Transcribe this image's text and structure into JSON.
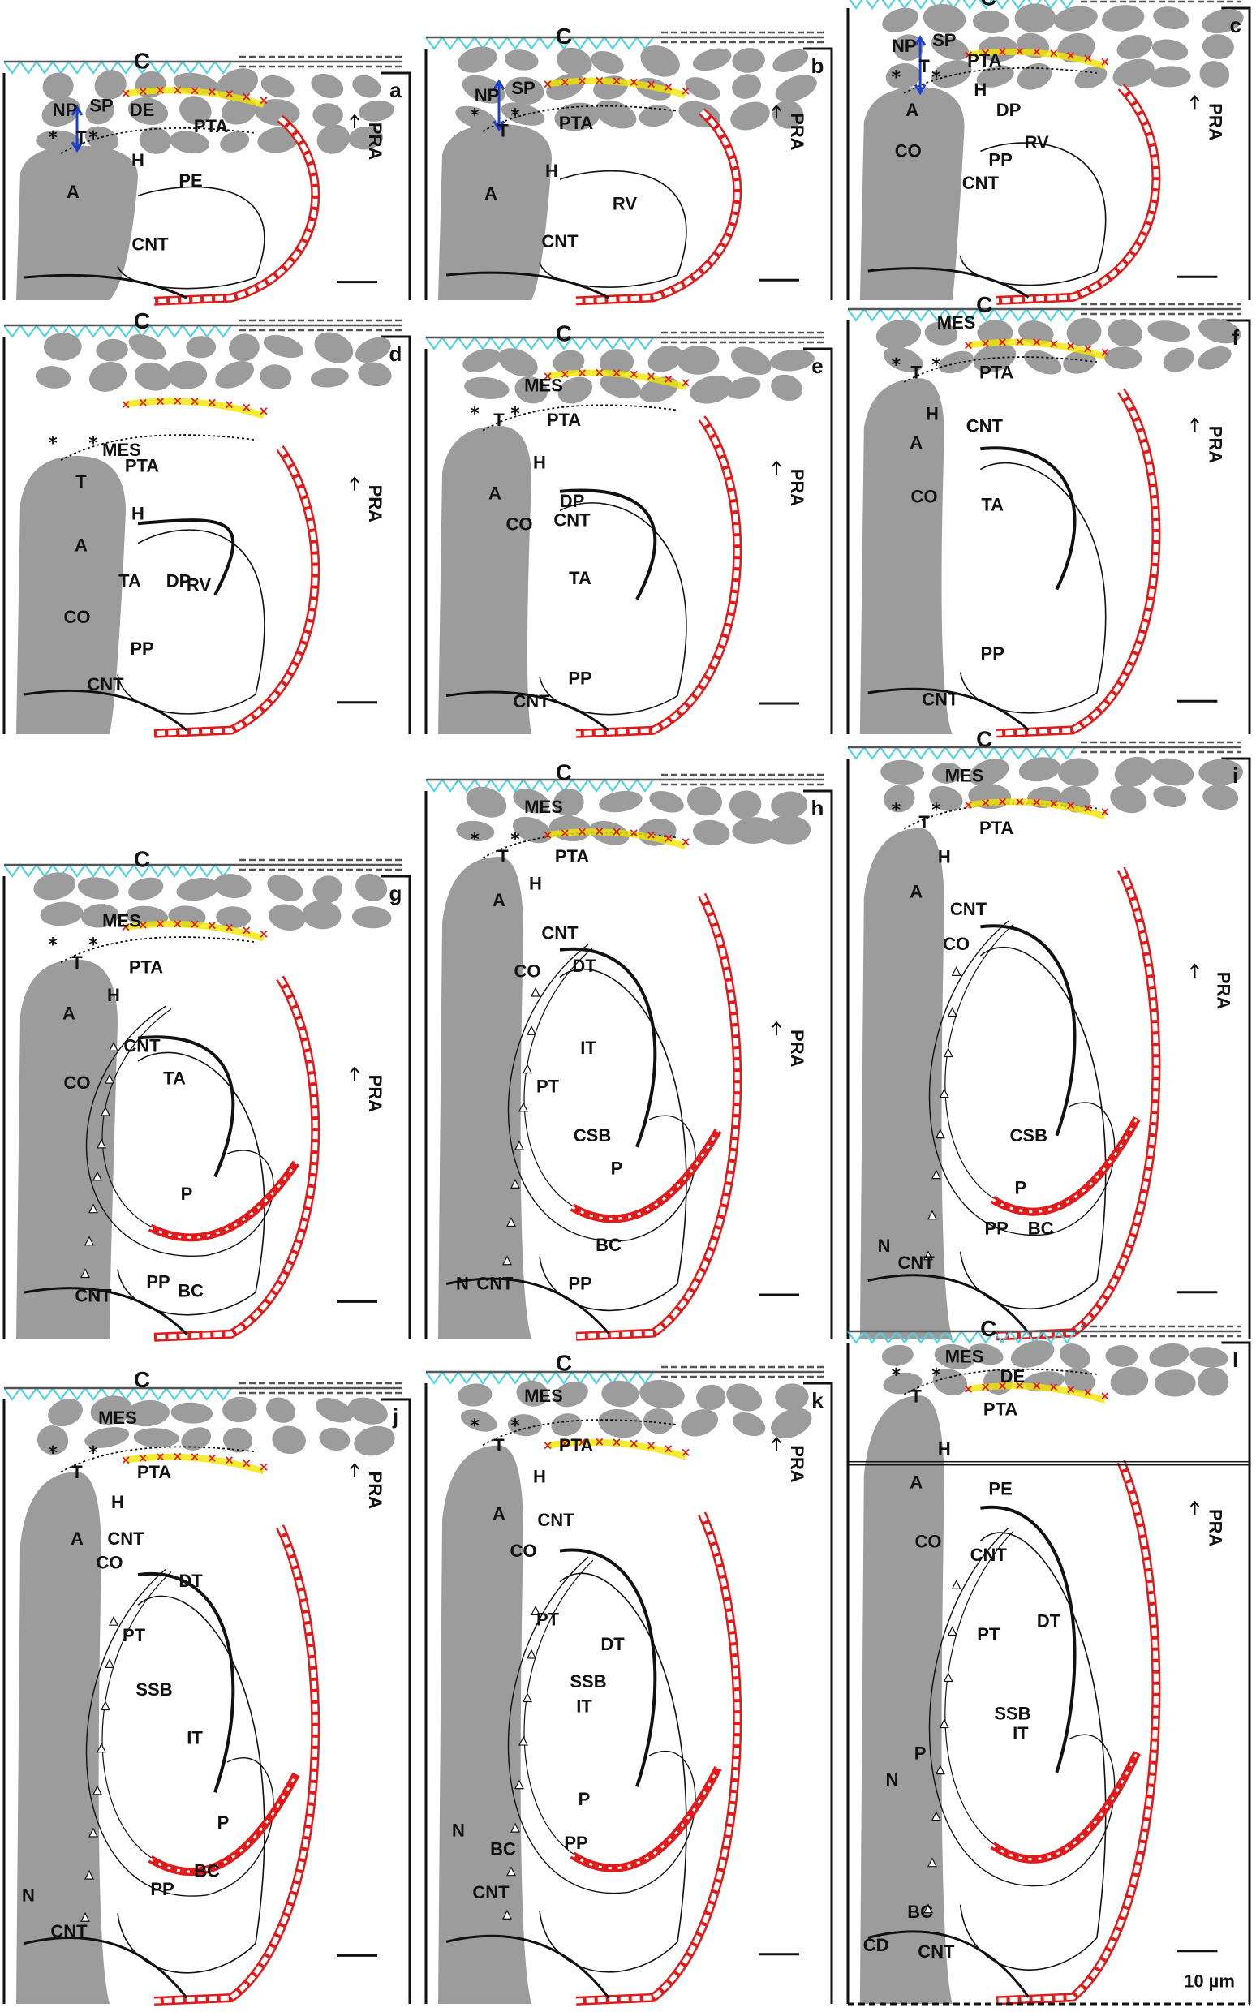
{
  "figure": {
    "scale_bar_label": "10 µm",
    "colors": {
      "grey_tissue": "#9c9c9c",
      "cyan_zigzag": "#4fd3e0",
      "red_marks": "#e01b1b",
      "yellow_marks": "#f2e600",
      "black": "#111111"
    },
    "panels": [
      {
        "id": "a",
        "letter": "a",
        "labels": [
          "C",
          "NP",
          "SP",
          "DE",
          "PTA",
          "T",
          "H",
          "PE",
          "A",
          "CNT",
          "PRA"
        ]
      },
      {
        "id": "b",
        "letter": "b",
        "labels": [
          "C",
          "NP",
          "SP",
          "PTA",
          "T",
          "H",
          "A",
          "RV",
          "CNT",
          "PRA"
        ]
      },
      {
        "id": "c",
        "letter": "c",
        "labels": [
          "C",
          "NP",
          "SP",
          "PTA",
          "T",
          "A",
          "H",
          "DP",
          "RV",
          "CO",
          "PP",
          "CNT",
          "PRA"
        ]
      },
      {
        "id": "d",
        "letter": "d",
        "labels": [
          "C",
          "MES",
          "T",
          "PTA",
          "H",
          "A",
          "TA",
          "DP",
          "RV",
          "CO",
          "PP",
          "CNT",
          "PRA"
        ]
      },
      {
        "id": "e",
        "letter": "e",
        "labels": [
          "C",
          "MES",
          "T",
          "PTA",
          "H",
          "A",
          "DP",
          "CNT",
          "CO",
          "TA",
          "PP",
          "CNT",
          "PRA"
        ]
      },
      {
        "id": "f",
        "letter": "f",
        "labels": [
          "C",
          "MES",
          "T",
          "PTA",
          "H",
          "CNT",
          "A",
          "CO",
          "TA",
          "PP",
          "CNT",
          "PRA"
        ]
      },
      {
        "id": "g",
        "letter": "g",
        "labels": [
          "C",
          "MES",
          "T",
          "PTA",
          "H",
          "A",
          "CNT",
          "CO",
          "TA",
          "P",
          "PP",
          "BC",
          "CNT",
          "PRA"
        ]
      },
      {
        "id": "h",
        "letter": "h",
        "labels": [
          "C",
          "MES",
          "T",
          "PTA",
          "H",
          "A",
          "CNT",
          "CO",
          "DT",
          "IT",
          "PT",
          "CSB",
          "P",
          "BC",
          "PP",
          "N",
          "CNT",
          "PRA"
        ]
      },
      {
        "id": "i",
        "letter": "i",
        "labels": [
          "C",
          "MES",
          "T",
          "PTA",
          "H",
          "A",
          "CNT",
          "CO",
          "CSB",
          "P",
          "PP",
          "BC",
          "N",
          "CNT",
          "PRA"
        ]
      },
      {
        "id": "j",
        "letter": "j",
        "labels": [
          "C",
          "MES",
          "T",
          "PTA",
          "H",
          "A",
          "CNT",
          "CO",
          "DT",
          "PT",
          "SSB",
          "IT",
          "P",
          "BC",
          "PP",
          "N",
          "CNT",
          "PRA"
        ]
      },
      {
        "id": "k",
        "letter": "k",
        "labels": [
          "C",
          "MES",
          "T",
          "PTA",
          "H",
          "A",
          "CNT",
          "CO",
          "PT",
          "DT",
          "SSB",
          "IT",
          "P",
          "BC",
          "PP",
          "N",
          "CNT",
          "PRA"
        ]
      },
      {
        "id": "l",
        "letter": "l",
        "labels": [
          "C",
          "MES",
          "DE",
          "T",
          "PTA",
          "H",
          "A",
          "PE",
          "CO",
          "CNT",
          "DT",
          "PT",
          "SSB",
          "IT",
          "P",
          "N",
          "BC",
          "CD",
          "CNT",
          "PRA"
        ]
      }
    ]
  }
}
